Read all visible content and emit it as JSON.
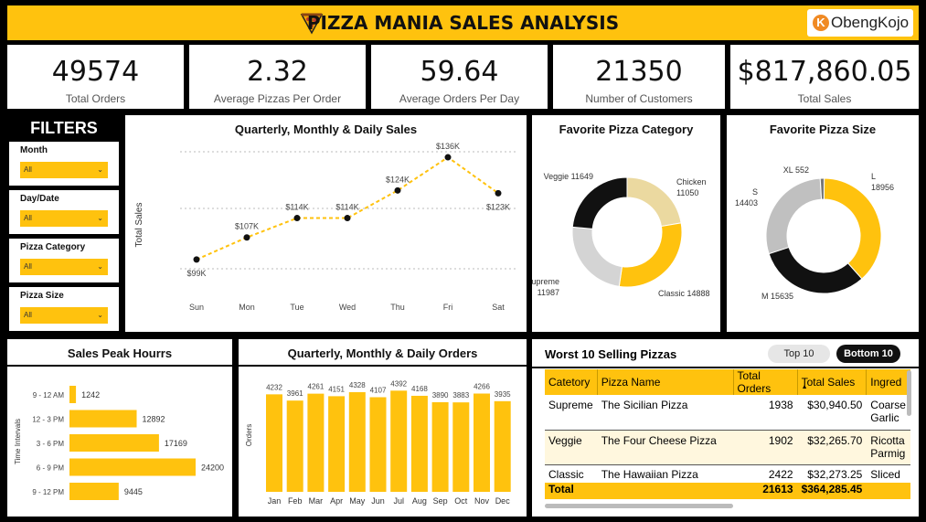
{
  "header": {
    "title": "PIZZA MANIA SALES ANALYSIS",
    "logo_text": "ObengKojo",
    "logo_mark": "K"
  },
  "kpis": [
    {
      "value": "49574",
      "label": "Total Orders"
    },
    {
      "value": "2.32",
      "label": "Average Pizzas Per Order"
    },
    {
      "value": "59.64",
      "label": "Average Orders Per Day"
    },
    {
      "value": "21350",
      "label": "Number of Customers"
    },
    {
      "value": "$817,860.05",
      "label": "Total Sales"
    }
  ],
  "filters": {
    "title": "FILTERS",
    "items": [
      {
        "label": "Month",
        "value": "All"
      },
      {
        "label": "Day/Date",
        "value": "All"
      },
      {
        "label": "Pizza Category",
        "value": "All"
      },
      {
        "label": "Pizza Size",
        "value": "All"
      }
    ]
  },
  "colors": {
    "accent": "#FFC20E",
    "dark": "#000000",
    "light_gray": "#c8c8c8",
    "pale": "#EBD9A0"
  },
  "chart_data": [
    {
      "type": "line",
      "title": "Quarterly, Monthly & Daily Sales",
      "ylabel": "Total Sales",
      "categories": [
        "Sun",
        "Mon",
        "Tue",
        "Wed",
        "Thu",
        "Fri",
        "Sat"
      ],
      "values": [
        99,
        107,
        114,
        114,
        124,
        136,
        123
      ],
      "data_labels": [
        "$99K",
        "$107K",
        "$114K",
        "$114K",
        "$124K",
        "$136K",
        "$123K"
      ]
    },
    {
      "type": "pie",
      "title": "Favorite Pizza Category",
      "labels": [
        "Chicken",
        "Classic",
        "Supreme",
        "Veggie"
      ],
      "values": [
        11050,
        14888,
        11987,
        11649
      ],
      "colors": [
        "#EBD9A0",
        "#FFC20E",
        "#d4d4d4",
        "#111111"
      ]
    },
    {
      "type": "pie",
      "title": "Favorite Pizza Size",
      "labels": [
        "L",
        "M",
        "S",
        "XL"
      ],
      "values": [
        18956,
        15635,
        14403,
        552
      ],
      "colors": [
        "#FFC20E",
        "#111111",
        "#c0c0c0",
        "#777777"
      ]
    },
    {
      "type": "bar",
      "title": "Sales Peak Hourrs",
      "ylabel": "Time Intervals",
      "categories": [
        "9 - 12 AM",
        "12 - 3 PM",
        "3 - 6 PM",
        "6 - 9 PM",
        "9 - 12 PM"
      ],
      "values": [
        1242,
        12892,
        17169,
        24200,
        9445
      ]
    },
    {
      "type": "bar",
      "title": "Quarterly, Monthly & Daily Orders",
      "ylabel": "Orders",
      "categories": [
        "Jan",
        "Feb",
        "Mar",
        "Apr",
        "May",
        "Jun",
        "Jul",
        "Aug",
        "Sep",
        "Oct",
        "Nov",
        "Dec"
      ],
      "values": [
        4232,
        3961,
        4261,
        4151,
        4328,
        4107,
        4392,
        4168,
        3890,
        3883,
        4266,
        3935
      ]
    }
  ],
  "table": {
    "title": "Worst 10 Selling Pizzas",
    "toggle_top": "Top 10",
    "toggle_bottom": "Bottom 10",
    "columns": [
      "Catetory",
      "Pizza Name",
      "Total Orders",
      "Total Sales",
      "Ingred"
    ],
    "rows": [
      {
        "category": "Supreme",
        "name": "The Sicilian Pizza",
        "orders": "1938",
        "sales": "$30,940.50",
        "ingred1": "Coarse",
        "ingred2": "Garlic"
      },
      {
        "category": "Veggie",
        "name": "The Four Cheese Pizza",
        "orders": "1902",
        "sales": "$32,265.70",
        "ingred1": "Ricotta",
        "ingred2": "Parmig"
      },
      {
        "category": "Classic",
        "name": "The Hawaiian Pizza",
        "orders": "2422",
        "sales": "$32,273.25",
        "ingred1": "Sliced",
        "ingred2": ""
      }
    ],
    "total": {
      "label": "Total",
      "orders": "21613",
      "sales": "$364,285.45"
    }
  }
}
